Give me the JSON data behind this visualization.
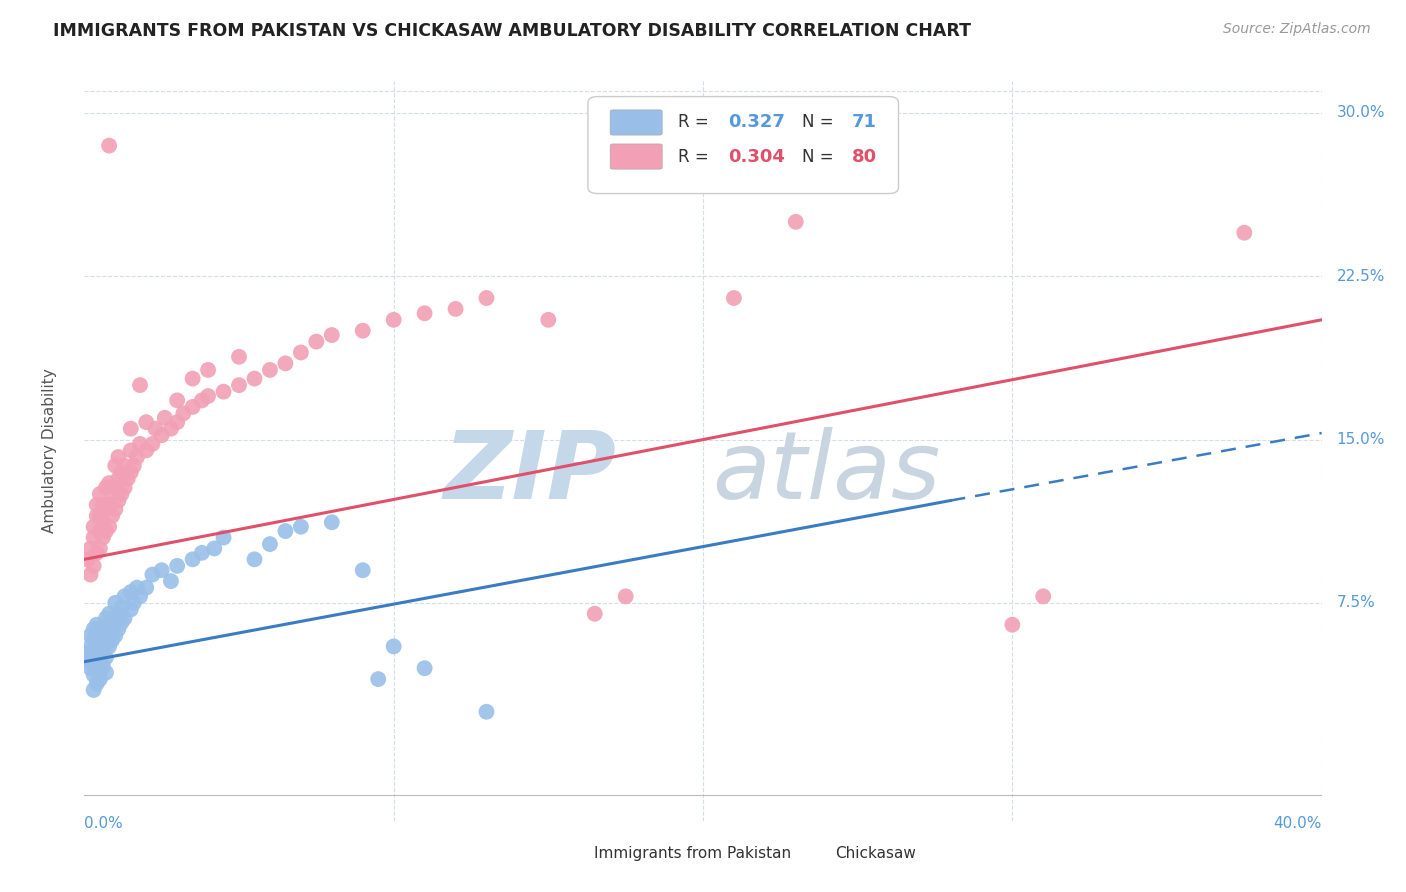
{
  "title": "IMMIGRANTS FROM PAKISTAN VS CHICKASAW AMBULATORY DISABILITY CORRELATION CHART",
  "source": "Source: ZipAtlas.com",
  "ylabel": "Ambulatory Disability",
  "ytick_labels": [
    "7.5%",
    "15.0%",
    "22.5%",
    "30.0%"
  ],
  "ytick_values": [
    0.075,
    0.15,
    0.225,
    0.3
  ],
  "xmin": 0.0,
  "xmax": 0.4,
  "ymin": -0.025,
  "ymax": 0.315,
  "legend_blue_label": "Immigrants from Pakistan",
  "legend_pink_label": "Chickasaw",
  "blue_R": "0.327",
  "blue_N": "71",
  "pink_R": "0.304",
  "pink_N": "80",
  "blue_color": "#99bfe8",
  "pink_color": "#f2a0b5",
  "blue_line_color": "#3a7cc4",
  "pink_line_color": "#e0506a",
  "label_color": "#5599dd",
  "watermark_ZIP_color": "#c5d8ea",
  "watermark_atlas_color": "#c8d5e0",
  "background_color": "#ffffff",
  "grid_color": "#d5dde8",
  "title_color": "#222222",
  "source_color": "#999999",
  "ylabel_color": "#555555",
  "blue_line_start_x": 0.0,
  "blue_line_start_y": 0.048,
  "blue_line_solid_end_x": 0.28,
  "blue_line_solid_end_y": 0.122,
  "blue_line_dash_end_x": 0.4,
  "blue_line_dash_end_y": 0.153,
  "pink_line_start_x": 0.0,
  "pink_line_start_y": 0.095,
  "pink_line_end_x": 0.4,
  "pink_line_end_y": 0.205,
  "xtick_positions": [
    0.0,
    0.1,
    0.2,
    0.3,
    0.4
  ],
  "blue_dots": [
    [
      0.001,
      0.048
    ],
    [
      0.001,
      0.052
    ],
    [
      0.002,
      0.045
    ],
    [
      0.002,
      0.05
    ],
    [
      0.002,
      0.055
    ],
    [
      0.002,
      0.06
    ],
    [
      0.003,
      0.042
    ],
    [
      0.003,
      0.048
    ],
    [
      0.003,
      0.053
    ],
    [
      0.003,
      0.058
    ],
    [
      0.003,
      0.063
    ],
    [
      0.003,
      0.035
    ],
    [
      0.004,
      0.045
    ],
    [
      0.004,
      0.05
    ],
    [
      0.004,
      0.055
    ],
    [
      0.004,
      0.06
    ],
    [
      0.004,
      0.065
    ],
    [
      0.004,
      0.038
    ],
    [
      0.005,
      0.043
    ],
    [
      0.005,
      0.048
    ],
    [
      0.005,
      0.052
    ],
    [
      0.005,
      0.057
    ],
    [
      0.005,
      0.063
    ],
    [
      0.005,
      0.04
    ],
    [
      0.006,
      0.046
    ],
    [
      0.006,
      0.052
    ],
    [
      0.006,
      0.058
    ],
    [
      0.006,
      0.064
    ],
    [
      0.007,
      0.05
    ],
    [
      0.007,
      0.056
    ],
    [
      0.007,
      0.062
    ],
    [
      0.007,
      0.068
    ],
    [
      0.007,
      0.043
    ],
    [
      0.008,
      0.055
    ],
    [
      0.008,
      0.062
    ],
    [
      0.008,
      0.07
    ],
    [
      0.009,
      0.058
    ],
    [
      0.009,
      0.065
    ],
    [
      0.01,
      0.06
    ],
    [
      0.01,
      0.068
    ],
    [
      0.01,
      0.075
    ],
    [
      0.011,
      0.063
    ],
    [
      0.011,
      0.07
    ],
    [
      0.012,
      0.066
    ],
    [
      0.012,
      0.073
    ],
    [
      0.013,
      0.068
    ],
    [
      0.013,
      0.078
    ],
    [
      0.015,
      0.072
    ],
    [
      0.015,
      0.08
    ],
    [
      0.016,
      0.075
    ],
    [
      0.017,
      0.082
    ],
    [
      0.018,
      0.078
    ],
    [
      0.02,
      0.082
    ],
    [
      0.022,
      0.088
    ],
    [
      0.025,
      0.09
    ],
    [
      0.028,
      0.085
    ],
    [
      0.03,
      0.092
    ],
    [
      0.035,
      0.095
    ],
    [
      0.038,
      0.098
    ],
    [
      0.042,
      0.1
    ],
    [
      0.045,
      0.105
    ],
    [
      0.055,
      0.095
    ],
    [
      0.06,
      0.102
    ],
    [
      0.065,
      0.108
    ],
    [
      0.07,
      0.11
    ],
    [
      0.08,
      0.112
    ],
    [
      0.09,
      0.09
    ],
    [
      0.095,
      0.04
    ],
    [
      0.1,
      0.055
    ],
    [
      0.11,
      0.045
    ],
    [
      0.13,
      0.025
    ]
  ],
  "pink_dots": [
    [
      0.001,
      0.095
    ],
    [
      0.002,
      0.088
    ],
    [
      0.002,
      0.1
    ],
    [
      0.003,
      0.092
    ],
    [
      0.003,
      0.105
    ],
    [
      0.003,
      0.11
    ],
    [
      0.004,
      0.098
    ],
    [
      0.004,
      0.115
    ],
    [
      0.004,
      0.12
    ],
    [
      0.005,
      0.1
    ],
    [
      0.005,
      0.108
    ],
    [
      0.005,
      0.115
    ],
    [
      0.005,
      0.125
    ],
    [
      0.006,
      0.105
    ],
    [
      0.006,
      0.112
    ],
    [
      0.006,
      0.12
    ],
    [
      0.007,
      0.108
    ],
    [
      0.007,
      0.118
    ],
    [
      0.007,
      0.128
    ],
    [
      0.008,
      0.11
    ],
    [
      0.008,
      0.12
    ],
    [
      0.008,
      0.13
    ],
    [
      0.008,
      0.285
    ],
    [
      0.009,
      0.115
    ],
    [
      0.009,
      0.125
    ],
    [
      0.01,
      0.118
    ],
    [
      0.01,
      0.128
    ],
    [
      0.01,
      0.138
    ],
    [
      0.011,
      0.122
    ],
    [
      0.011,
      0.132
    ],
    [
      0.011,
      0.142
    ],
    [
      0.012,
      0.125
    ],
    [
      0.012,
      0.135
    ],
    [
      0.013,
      0.128
    ],
    [
      0.013,
      0.138
    ],
    [
      0.014,
      0.132
    ],
    [
      0.015,
      0.135
    ],
    [
      0.015,
      0.145
    ],
    [
      0.015,
      0.155
    ],
    [
      0.016,
      0.138
    ],
    [
      0.017,
      0.142
    ],
    [
      0.018,
      0.148
    ],
    [
      0.018,
      0.175
    ],
    [
      0.02,
      0.145
    ],
    [
      0.02,
      0.158
    ],
    [
      0.022,
      0.148
    ],
    [
      0.023,
      0.155
    ],
    [
      0.025,
      0.152
    ],
    [
      0.026,
      0.16
    ],
    [
      0.028,
      0.155
    ],
    [
      0.03,
      0.158
    ],
    [
      0.03,
      0.168
    ],
    [
      0.032,
      0.162
    ],
    [
      0.035,
      0.165
    ],
    [
      0.035,
      0.178
    ],
    [
      0.038,
      0.168
    ],
    [
      0.04,
      0.17
    ],
    [
      0.04,
      0.182
    ],
    [
      0.045,
      0.172
    ],
    [
      0.05,
      0.175
    ],
    [
      0.05,
      0.188
    ],
    [
      0.055,
      0.178
    ],
    [
      0.06,
      0.182
    ],
    [
      0.065,
      0.185
    ],
    [
      0.07,
      0.19
    ],
    [
      0.075,
      0.195
    ],
    [
      0.08,
      0.198
    ],
    [
      0.09,
      0.2
    ],
    [
      0.1,
      0.205
    ],
    [
      0.11,
      0.208
    ],
    [
      0.12,
      0.21
    ],
    [
      0.13,
      0.215
    ],
    [
      0.15,
      0.205
    ],
    [
      0.165,
      0.07
    ],
    [
      0.175,
      0.078
    ],
    [
      0.21,
      0.215
    ],
    [
      0.23,
      0.25
    ],
    [
      0.3,
      0.065
    ],
    [
      0.31,
      0.078
    ],
    [
      0.375,
      0.245
    ]
  ]
}
